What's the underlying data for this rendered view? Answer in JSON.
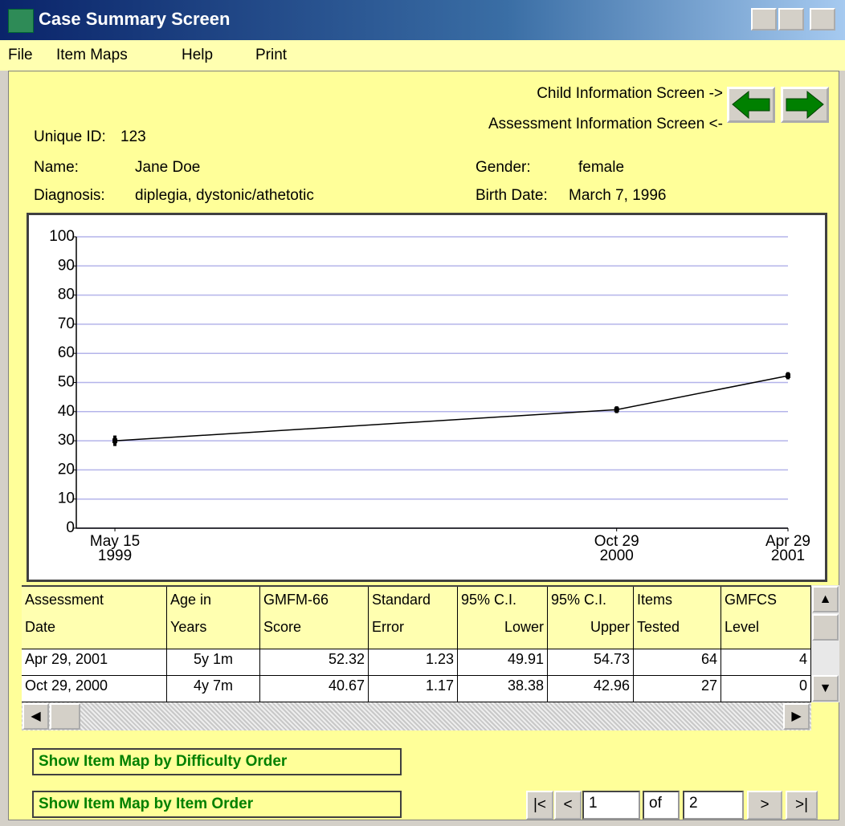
{
  "window": {
    "title": "Case Summary Screen"
  },
  "menu": [
    "File",
    "Item Maps",
    "Help",
    "Print"
  ],
  "navigation": {
    "child": "Child Information Screen ->",
    "assessment": "Assessment Information Screen <-"
  },
  "info": {
    "unique_id_label": "Unique ID:",
    "unique_id": "123",
    "name_label": "Name:",
    "name": "Jane Doe",
    "diagnosis_label": "Diagnosis:",
    "diagnosis": "diplegia, dystonic/athetotic",
    "gender_label": "Gender:",
    "gender": "female",
    "birth_label": "Birth Date:",
    "birth": "March 7, 1996"
  },
  "chart_data": {
    "type": "line",
    "x": [
      "1999-05-15",
      "2000-10-29",
      "2001-04-29"
    ],
    "values": [
      30.0,
      40.67,
      52.32
    ],
    "errors": [
      1.8,
      1.17,
      1.23
    ],
    "color": "#000000",
    "xlim": [
      "1999-04-04",
      "2001-04-29"
    ],
    "xticks": [
      {
        "value": "1999-05-15",
        "label": [
          "May 15",
          "1999"
        ]
      },
      {
        "value": "2000-10-29",
        "label": [
          "Oct 29",
          "2000"
        ]
      },
      {
        "value": "2001-04-29",
        "label": [
          "Apr 29",
          "2001"
        ]
      }
    ],
    "ylim": [
      0,
      100
    ],
    "yticks": [
      0,
      10,
      20,
      30,
      40,
      50,
      60,
      70,
      80,
      90,
      100
    ],
    "grid": true,
    "grid_color": "#b4b4ea"
  },
  "table": {
    "header": [
      [
        "Assessment",
        "Date"
      ],
      [
        "Age in",
        "Years"
      ],
      [
        "GMFM-66",
        "Score"
      ],
      [
        "Standard",
        "Error"
      ],
      [
        "95% C.I.",
        "Lower"
      ],
      [
        "95% C.I.",
        "Upper"
      ],
      [
        "Items",
        "Tested"
      ],
      [
        "GMFCS",
        "Level"
      ]
    ],
    "rows": [
      [
        "Apr 29, 2001",
        "5y  1m",
        "52.32",
        "1.23",
        "49.91",
        "54.73",
        "64",
        "4"
      ],
      [
        "Oct 29, 2000",
        "4y  7m",
        "40.67",
        "1.17",
        "38.38",
        "42.96",
        "27",
        "0"
      ]
    ]
  },
  "buttons": {
    "difficulty": "Show Item Map by Difficulty Order",
    "item": "Show Item Map by Item Order"
  },
  "pager": {
    "first": "|<",
    "prev": "<",
    "page": "1",
    "of": "of",
    "total": "2",
    "next": ">",
    "last": ">|"
  }
}
